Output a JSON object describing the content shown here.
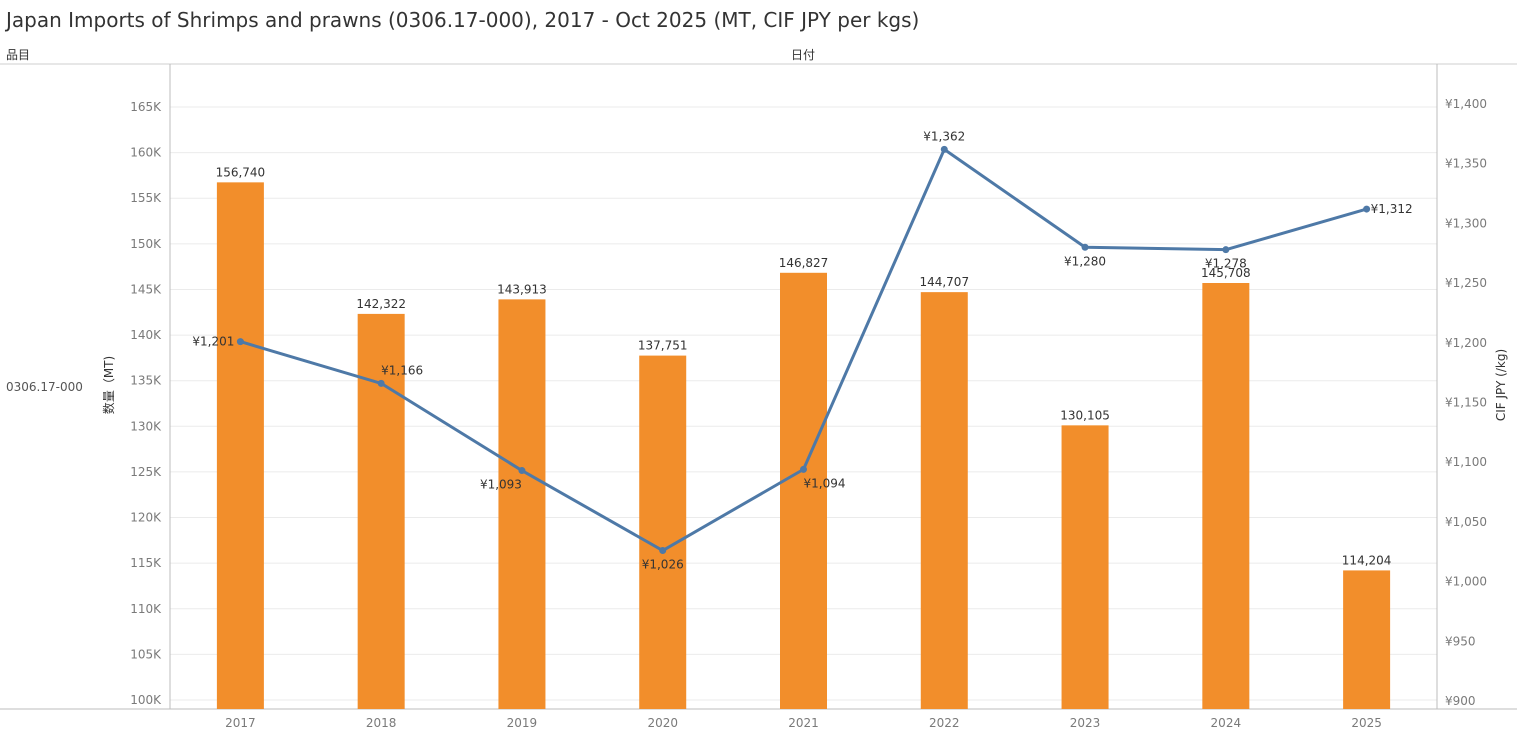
{
  "title": "Japan Imports of Shrimps and prawns (0306.17-000), 2017 - Oct 2025 (MT, CIF JPY per kgs)",
  "header": {
    "item_col": "品目",
    "date_col": "日付"
  },
  "row_label": "0306.17-000",
  "colors": {
    "bar": "#f28e2b",
    "line": "#4e79a7",
    "grid": "#ebebeb",
    "axis": "#bdbdbd"
  },
  "chart_data": {
    "type": "bar",
    "categories": [
      "2017",
      "2018",
      "2019",
      "2020",
      "2021",
      "2022",
      "2023",
      "2024",
      "2025"
    ],
    "series": [
      {
        "type": "bar",
        "axis": "left",
        "values": [
          156740,
          142322,
          143913,
          137751,
          146827,
          144707,
          130105,
          145708,
          114204
        ],
        "labels": [
          "156,740",
          "142,322",
          "143,913",
          "137,751",
          "146,827",
          "144,707",
          "130,105",
          "145,708",
          "114,204"
        ]
      },
      {
        "type": "line",
        "axis": "right",
        "values": [
          1201,
          1166,
          1093,
          1026,
          1094,
          1362,
          1280,
          1278,
          1312
        ],
        "labels": [
          "¥1,201",
          "¥1,166",
          "¥1,093",
          "¥1,026",
          "¥1,094",
          "¥1,362",
          "¥1,280",
          "¥1,278",
          "¥1,312"
        ]
      }
    ],
    "ylabel_left": "数量（MT)",
    "ylabel_right": "CIF JPY (/kg)",
    "ylim_left": [
      100000,
      169000
    ],
    "ylim_right": [
      900,
      1430
    ],
    "yticks_left": [
      {
        "value": 100000,
        "label": "100K"
      },
      {
        "value": 105000,
        "label": "105K"
      },
      {
        "value": 110000,
        "label": "110K"
      },
      {
        "value": 115000,
        "label": "115K"
      },
      {
        "value": 120000,
        "label": "120K"
      },
      {
        "value": 125000,
        "label": "125K"
      },
      {
        "value": 130000,
        "label": "130K"
      },
      {
        "value": 135000,
        "label": "135K"
      },
      {
        "value": 140000,
        "label": "140K"
      },
      {
        "value": 145000,
        "label": "145K"
      },
      {
        "value": 150000,
        "label": "150K"
      },
      {
        "value": 155000,
        "label": "155K"
      },
      {
        "value": 160000,
        "label": "160K"
      },
      {
        "value": 165000,
        "label": "165K"
      }
    ],
    "yticks_right": [
      {
        "value": 900,
        "label": "¥900"
      },
      {
        "value": 950,
        "label": "¥950"
      },
      {
        "value": 1000,
        "label": "¥1,000"
      },
      {
        "value": 1050,
        "label": "¥1,050"
      },
      {
        "value": 1100,
        "label": "¥1,100"
      },
      {
        "value": 1150,
        "label": "¥1,150"
      },
      {
        "value": 1200,
        "label": "¥1,200"
      },
      {
        "value": 1250,
        "label": "¥1,250"
      },
      {
        "value": 1300,
        "label": "¥1,300"
      },
      {
        "value": 1350,
        "label": "¥1,350"
      },
      {
        "value": 1400,
        "label": "¥1,400"
      }
    ],
    "grid": true
  }
}
